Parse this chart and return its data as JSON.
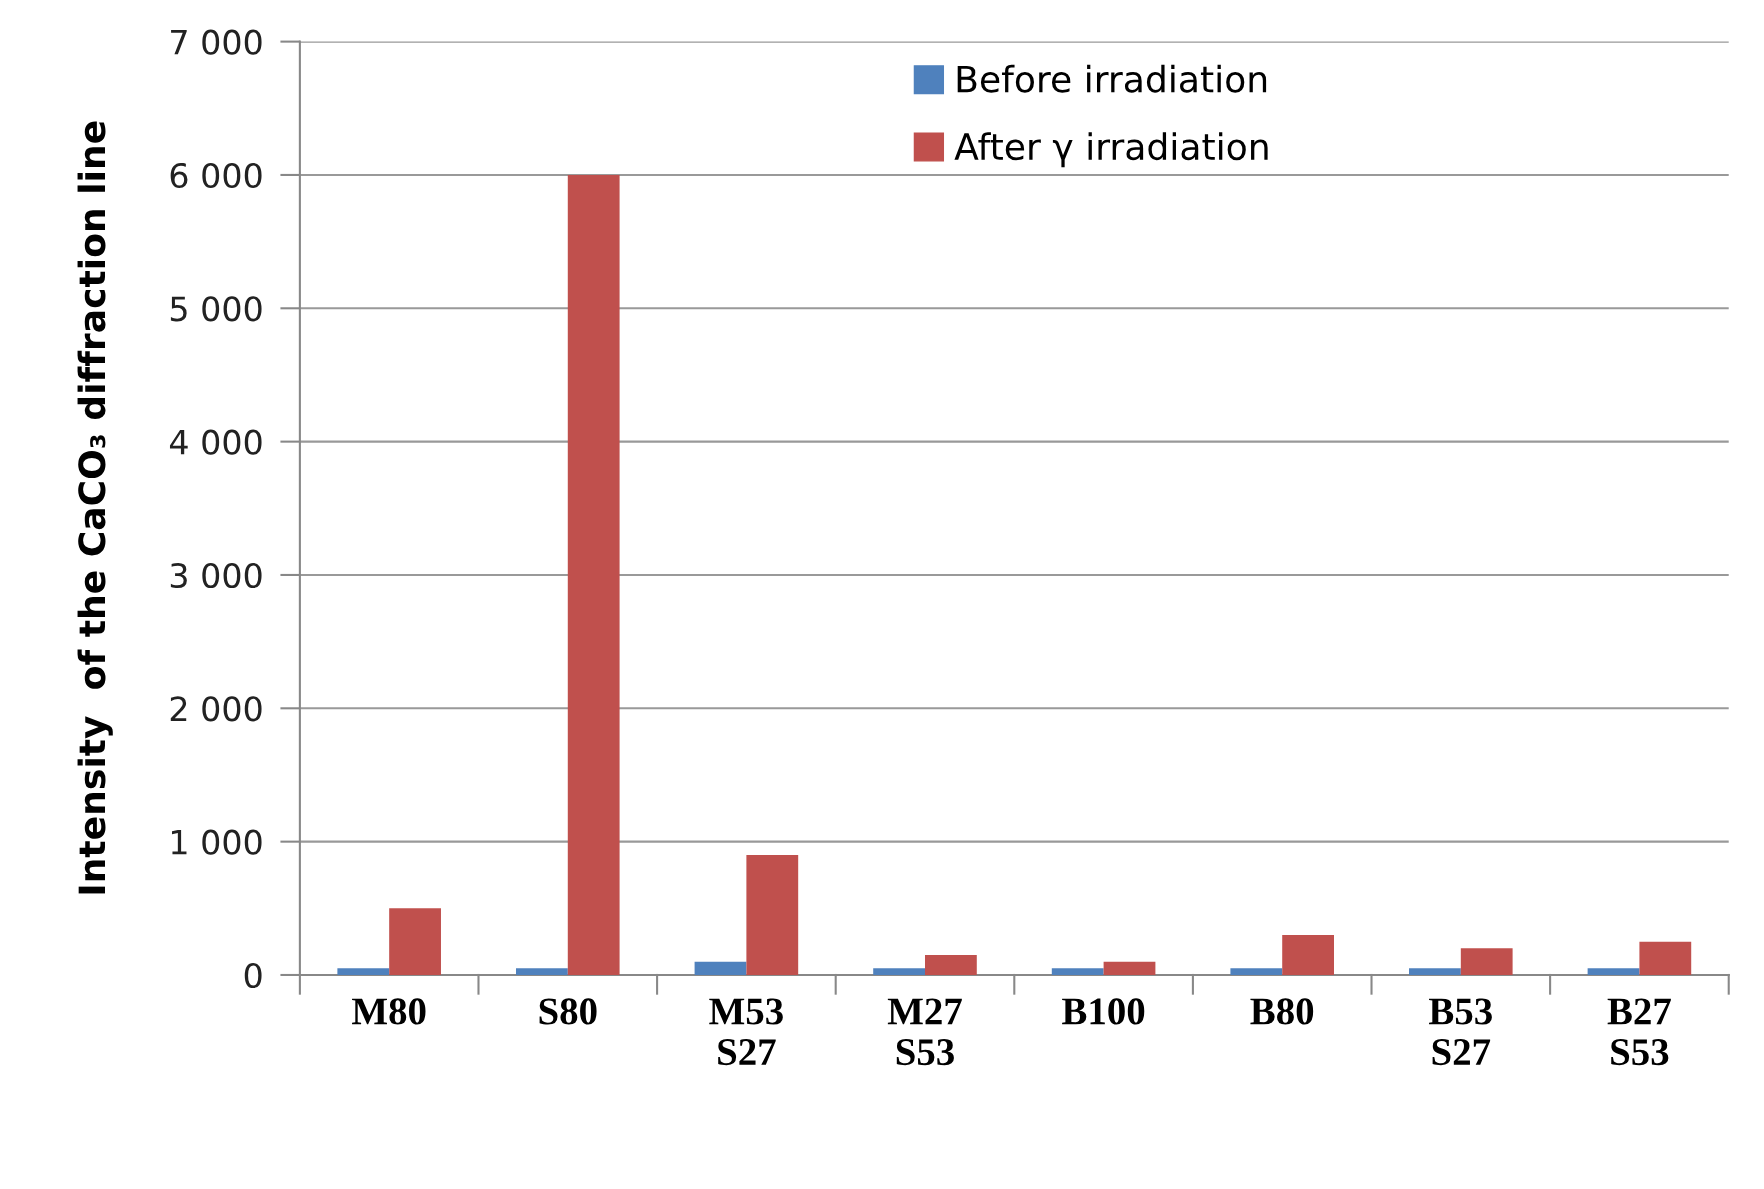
{
  "chart_data": {
    "type": "bar",
    "ylabel": "Intensity  of the CaCO₃ diffraction line",
    "categories": [
      "M80",
      "S80",
      "M53\nS27",
      "M27\nS53",
      "B100",
      "B80",
      "B53\nS27",
      "B27\nS53"
    ],
    "series": [
      {
        "name": "Before irradiation",
        "color": "#4f81bd",
        "values": [
          50,
          50,
          100,
          50,
          50,
          50,
          50,
          50
        ]
      },
      {
        "name": "After γ irradiation",
        "color": "#c0504d",
        "values": [
          500,
          6000,
          900,
          150,
          100,
          300,
          200,
          250
        ]
      }
    ],
    "ylim": [
      0,
      7000
    ],
    "yticks": [
      {
        "value": 0,
        "label": "0"
      },
      {
        "value": 1000,
        "label": "1 000"
      },
      {
        "value": 2000,
        "label": "2 000"
      },
      {
        "value": 3000,
        "label": "3 000"
      },
      {
        "value": 4000,
        "label": "4 000"
      },
      {
        "value": 5000,
        "label": "5 000"
      },
      {
        "value": 6000,
        "label": "6 000"
      },
      {
        "value": 7000,
        "label": "7 000"
      }
    ],
    "grid": "y",
    "legend": "top right"
  }
}
